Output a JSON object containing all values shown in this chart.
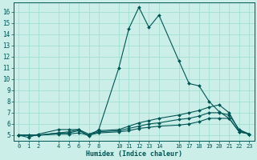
{
  "title": "",
  "xlabel": "Humidex (Indice chaleur)",
  "xlim": [
    -0.5,
    23.5
  ],
  "ylim": [
    4.5,
    16.8
  ],
  "yticks": [
    5,
    6,
    7,
    8,
    9,
    10,
    11,
    12,
    13,
    14,
    15,
    16
  ],
  "xticks": [
    0,
    1,
    2,
    4,
    5,
    6,
    7,
    8,
    10,
    11,
    12,
    13,
    14,
    16,
    17,
    18,
    19,
    20,
    21,
    22,
    23
  ],
  "bg_color": "#cceee8",
  "grid_color": "#99ddcc",
  "line_color": "#005555",
  "series": [
    {
      "x": [
        0,
        1,
        2,
        4,
        5,
        6,
        7,
        8,
        10,
        11,
        12,
        13,
        14,
        16,
        17,
        18,
        19,
        20,
        21,
        22,
        23
      ],
      "y": [
        5.0,
        4.8,
        5.1,
        5.5,
        5.5,
        5.5,
        4.9,
        5.5,
        11.0,
        14.5,
        16.4,
        14.6,
        15.7,
        11.6,
        9.6,
        9.4,
        8.0,
        7.1,
        6.5,
        5.3,
        5.1
      ]
    },
    {
      "x": [
        0,
        1,
        2,
        4,
        5,
        6,
        7,
        8,
        10,
        11,
        12,
        13,
        14,
        16,
        17,
        18,
        19,
        20,
        21,
        22,
        23
      ],
      "y": [
        5.0,
        5.0,
        5.0,
        5.2,
        5.3,
        5.5,
        5.1,
        5.4,
        5.5,
        5.8,
        6.1,
        6.3,
        6.5,
        6.8,
        7.0,
        7.2,
        7.5,
        7.7,
        7.0,
        5.4,
        5.1
      ]
    },
    {
      "x": [
        0,
        1,
        2,
        4,
        5,
        6,
        7,
        8,
        10,
        11,
        12,
        13,
        14,
        16,
        17,
        18,
        19,
        20,
        21,
        22,
        23
      ],
      "y": [
        5.0,
        5.0,
        5.0,
        5.2,
        5.2,
        5.4,
        5.0,
        5.3,
        5.4,
        5.6,
        5.8,
        6.0,
        6.1,
        6.4,
        6.5,
        6.7,
        7.0,
        7.0,
        6.8,
        5.5,
        5.1
      ]
    },
    {
      "x": [
        0,
        1,
        2,
        4,
        5,
        6,
        7,
        8,
        10,
        11,
        12,
        13,
        14,
        16,
        17,
        18,
        19,
        20,
        21,
        22,
        23
      ],
      "y": [
        5.0,
        5.0,
        5.0,
        5.1,
        5.1,
        5.2,
        5.0,
        5.2,
        5.3,
        5.4,
        5.6,
        5.7,
        5.8,
        5.9,
        6.0,
        6.2,
        6.5,
        6.5,
        6.5,
        5.3,
        5.1
      ]
    }
  ]
}
